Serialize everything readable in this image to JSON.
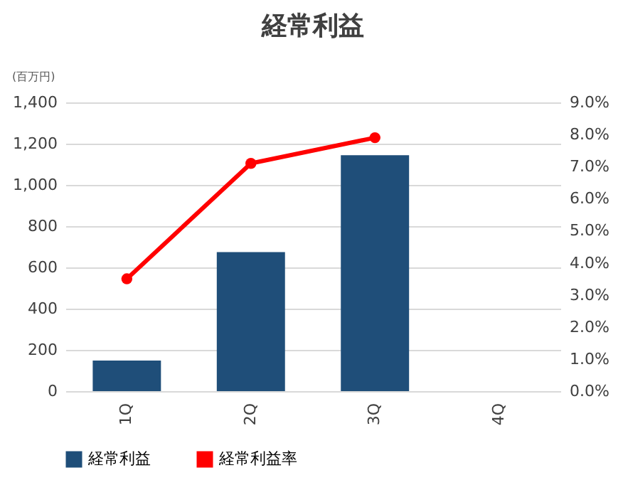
{
  "chart_data": {
    "type": "bar",
    "title": "経常利益",
    "ylabel": "(百万円)",
    "categories": [
      "1Q",
      "2Q",
      "3Q",
      "4Q"
    ],
    "series": [
      {
        "name": "経常利益",
        "color": "#1f4e79",
        "values": [
          148,
          674,
          1144,
          null
        ]
      },
      {
        "name": "経常利益率",
        "type": "line",
        "axis": "y2",
        "color": "#ff0000",
        "values": [
          3.5,
          7.1,
          7.9,
          null
        ]
      }
    ],
    "ylim": [
      0,
      1400
    ],
    "yticks": [
      {
        "value": 0,
        "label": "0"
      },
      {
        "value": 200,
        "label": "200"
      },
      {
        "value": 400,
        "label": "400"
      },
      {
        "value": 600,
        "label": "600"
      },
      {
        "value": 800,
        "label": "800"
      },
      {
        "value": 1000,
        "label": "1,000"
      },
      {
        "value": 1200,
        "label": "1,200"
      },
      {
        "value": 1400,
        "label": "1,400"
      }
    ],
    "y2lim": [
      0,
      9
    ],
    "y2ticks": [
      {
        "value": 0,
        "label": "0.0%"
      },
      {
        "value": 1,
        "label": "1.0%"
      },
      {
        "value": 2,
        "label": "2.0%"
      },
      {
        "value": 3,
        "label": "3.0%"
      },
      {
        "value": 4,
        "label": "4.0%"
      },
      {
        "value": 5,
        "label": "5.0%"
      },
      {
        "value": 6,
        "label": "6.0%"
      },
      {
        "value": 7,
        "label": "7.0%"
      },
      {
        "value": 8,
        "label": "8.0%"
      },
      {
        "value": 9,
        "label": "9.0%"
      }
    ],
    "grid": "y",
    "legend": "bottom",
    "marker": "circle",
    "line_style": "solid"
  }
}
